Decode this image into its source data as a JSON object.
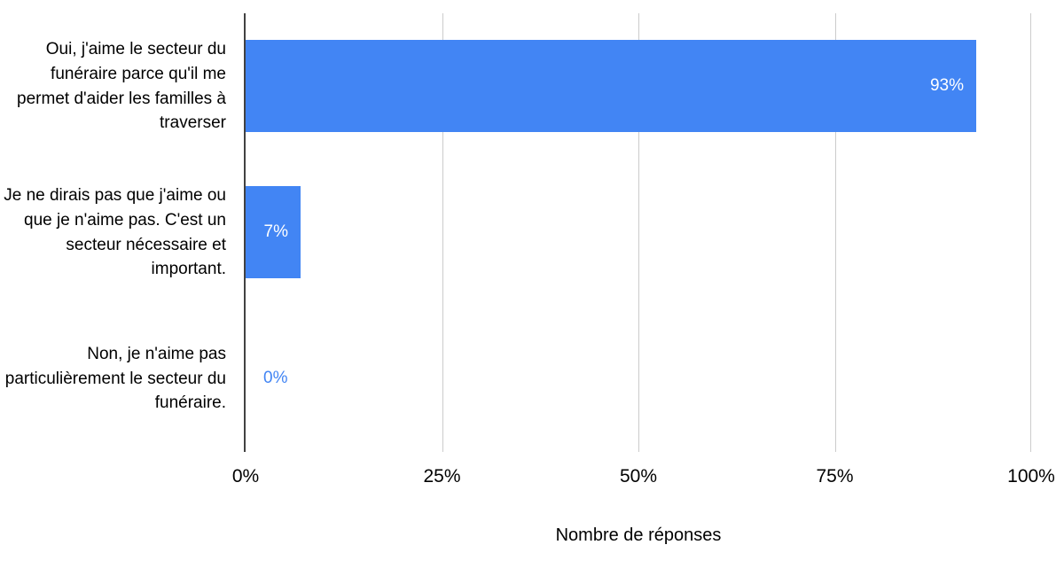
{
  "chart_data": {
    "type": "bar",
    "orientation": "horizontal",
    "categories": [
      "Oui, j'aime le secteur du funéraire parce qu'il me permet d'aider les familles à traverser",
      "Je ne dirais pas que j'aime ou que je n'aime pas. C'est un secteur nécessaire et important.",
      "Non, je n'aime pas particulièrement le secteur du funéraire."
    ],
    "values": [
      93,
      7,
      0
    ],
    "value_labels": [
      "93%",
      "7%",
      "0%"
    ],
    "x_ticks": [
      "0%",
      "25%",
      "50%",
      "75%",
      "100%"
    ],
    "xlim": [
      0,
      100
    ],
    "xlabel": "Nombre de réponses",
    "title": "",
    "grid": "vertical",
    "legend": "none",
    "bar_color": "#4285f4",
    "value_label_color_inside": "#ffffff",
    "value_label_color_outside": "#4285f4",
    "gridline_color": "#cccccc",
    "axis_line_color": "#424242"
  }
}
